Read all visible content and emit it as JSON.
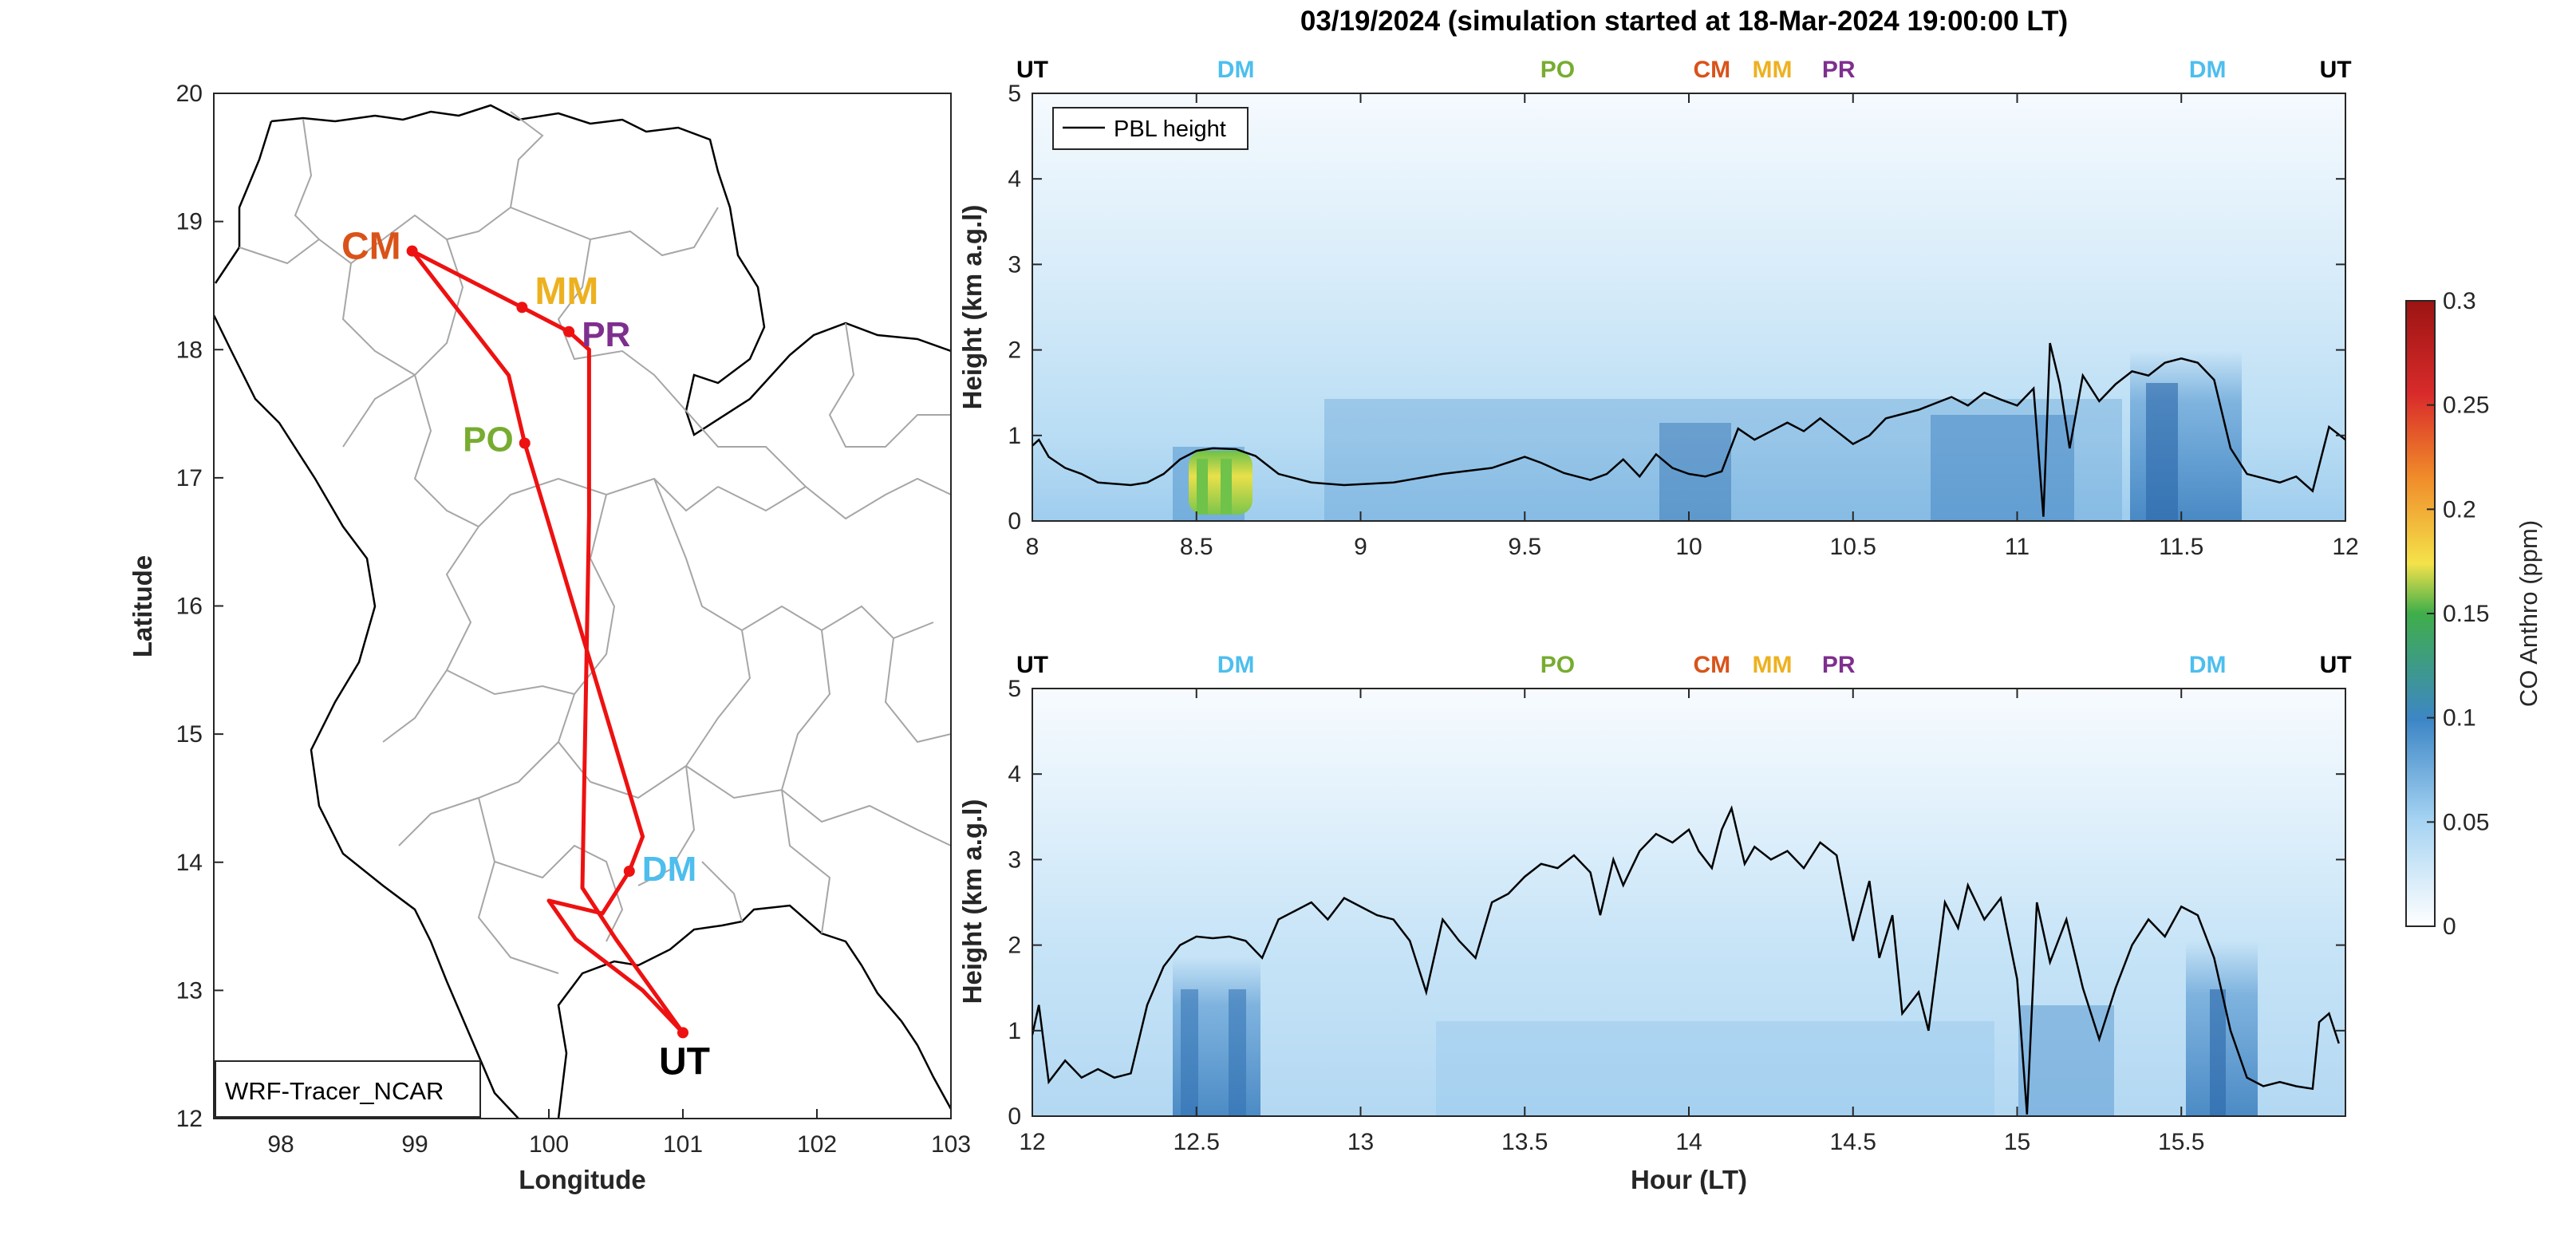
{
  "title": "03/19/2024 (simulation started at 18-Mar-2024 19:00:00 LT)",
  "colors": {
    "UT": "#000000",
    "DM": "#4dbeee",
    "PO": "#77ac30",
    "CM": "#d95319",
    "MM": "#edb120",
    "PR": "#7e2f8e",
    "track": "#ee1111",
    "pbl": "#000000"
  },
  "chart_data": [
    {
      "type": "map",
      "xlabel": "Longitude",
      "ylabel": "Latitude",
      "xlim": [
        97.5,
        103
      ],
      "ylim": [
        12,
        20
      ],
      "xticks": [
        98,
        99,
        100,
        101,
        102,
        103
      ],
      "yticks": [
        12,
        13,
        14,
        15,
        16,
        17,
        18,
        19,
        20
      ],
      "legend": "WRF-Tracer_NCAR",
      "sites": [
        {
          "name": "CM",
          "lon": 98.98,
          "lat": 18.77
        },
        {
          "name": "MM",
          "lon": 99.8,
          "lat": 18.33
        },
        {
          "name": "PR",
          "lon": 100.15,
          "lat": 18.14
        },
        {
          "name": "PO",
          "lon": 99.82,
          "lat": 17.27
        },
        {
          "name": "DM",
          "lon": 100.6,
          "lat": 13.93
        },
        {
          "name": "UT",
          "lon": 101.0,
          "lat": 12.67
        }
      ],
      "track": [
        [
          101.0,
          12.67
        ],
        [
          100.5,
          13.4
        ],
        [
          100.25,
          13.8
        ],
        [
          100.3,
          16.7
        ],
        [
          100.3,
          18.0
        ],
        [
          100.15,
          18.14
        ],
        [
          99.8,
          18.33
        ],
        [
          98.98,
          18.77
        ],
        [
          99.7,
          17.8
        ],
        [
          99.82,
          17.27
        ],
        [
          100.7,
          14.2
        ],
        [
          100.6,
          13.93
        ],
        [
          100.4,
          13.6
        ],
        [
          100.0,
          13.7
        ],
        [
          100.2,
          13.4
        ],
        [
          100.7,
          13.0
        ],
        [
          101.0,
          12.67
        ]
      ]
    },
    {
      "type": "heatmap",
      "xlabel": "",
      "ylabel": "Height (km a.g.l)",
      "xlim": [
        8,
        12
      ],
      "ylim": [
        0,
        5
      ],
      "xticks": [
        8,
        8.5,
        9,
        9.5,
        10,
        10.5,
        11,
        11.5,
        12
      ],
      "yticks": [
        0,
        1,
        2,
        3,
        4,
        5
      ],
      "legend": "PBL height",
      "site_markers": [
        {
          "name": "UT",
          "x": 8.0
        },
        {
          "name": "DM",
          "x": 8.62
        },
        {
          "name": "PO",
          "x": 9.6
        },
        {
          "name": "CM",
          "x": 10.07
        },
        {
          "name": "MM",
          "x": 10.3
        },
        {
          "name": "PR",
          "x": 10.42
        },
        {
          "name": "DM",
          "x": 11.58
        },
        {
          "name": "UT",
          "x": 11.97
        }
      ],
      "pbl_height": [
        [
          8.0,
          0.88
        ],
        [
          8.02,
          0.95
        ],
        [
          8.05,
          0.75
        ],
        [
          8.1,
          0.62
        ],
        [
          8.15,
          0.55
        ],
        [
          8.2,
          0.45
        ],
        [
          8.3,
          0.42
        ],
        [
          8.35,
          0.45
        ],
        [
          8.4,
          0.55
        ],
        [
          8.45,
          0.72
        ],
        [
          8.5,
          0.82
        ],
        [
          8.55,
          0.85
        ],
        [
          8.62,
          0.84
        ],
        [
          8.68,
          0.76
        ],
        [
          8.75,
          0.55
        ],
        [
          8.85,
          0.45
        ],
        [
          8.95,
          0.42
        ],
        [
          9.1,
          0.45
        ],
        [
          9.25,
          0.55
        ],
        [
          9.4,
          0.62
        ],
        [
          9.5,
          0.75
        ],
        [
          9.55,
          0.68
        ],
        [
          9.62,
          0.56
        ],
        [
          9.7,
          0.48
        ],
        [
          9.75,
          0.55
        ],
        [
          9.8,
          0.72
        ],
        [
          9.85,
          0.52
        ],
        [
          9.9,
          0.78
        ],
        [
          9.95,
          0.62
        ],
        [
          10.0,
          0.55
        ],
        [
          10.05,
          0.52
        ],
        [
          10.1,
          0.58
        ],
        [
          10.15,
          1.08
        ],
        [
          10.2,
          0.95
        ],
        [
          10.25,
          1.05
        ],
        [
          10.3,
          1.15
        ],
        [
          10.35,
          1.05
        ],
        [
          10.4,
          1.2
        ],
        [
          10.45,
          1.05
        ],
        [
          10.5,
          0.9
        ],
        [
          10.55,
          1.0
        ],
        [
          10.6,
          1.2
        ],
        [
          10.7,
          1.3
        ],
        [
          10.8,
          1.45
        ],
        [
          10.85,
          1.35
        ],
        [
          10.9,
          1.5
        ],
        [
          10.95,
          1.42
        ],
        [
          11.0,
          1.35
        ],
        [
          11.05,
          1.55
        ],
        [
          11.08,
          0.05
        ],
        [
          11.1,
          2.08
        ],
        [
          11.13,
          1.6
        ],
        [
          11.16,
          0.85
        ],
        [
          11.2,
          1.7
        ],
        [
          11.25,
          1.4
        ],
        [
          11.3,
          1.6
        ],
        [
          11.35,
          1.75
        ],
        [
          11.4,
          1.7
        ],
        [
          11.45,
          1.85
        ],
        [
          11.5,
          1.9
        ],
        [
          11.55,
          1.85
        ],
        [
          11.6,
          1.65
        ],
        [
          11.65,
          0.85
        ],
        [
          11.7,
          0.55
        ],
        [
          11.8,
          0.45
        ],
        [
          11.85,
          0.52
        ],
        [
          11.9,
          0.35
        ],
        [
          11.95,
          1.1
        ],
        [
          12.0,
          0.95
        ]
      ]
    },
    {
      "type": "heatmap",
      "xlabel": "Hour (LT)",
      "ylabel": "Height (km a.g.l)",
      "xlim": [
        12,
        16
      ],
      "ylim": [
        0,
        5
      ],
      "xticks": [
        12,
        12.5,
        13,
        13.5,
        14,
        14.5,
        15,
        15.5
      ],
      "yticks": [
        0,
        1,
        2,
        3,
        4,
        5
      ],
      "site_markers": [
        {
          "name": "UT",
          "x": 12.0
        },
        {
          "name": "DM",
          "x": 12.62
        },
        {
          "name": "PO",
          "x": 13.6
        },
        {
          "name": "CM",
          "x": 14.07
        },
        {
          "name": "MM",
          "x": 14.3
        },
        {
          "name": "PR",
          "x": 14.42
        },
        {
          "name": "DM",
          "x": 15.58
        },
        {
          "name": "UT",
          "x": 15.97
        }
      ],
      "pbl_height": [
        [
          12.0,
          0.95
        ],
        [
          12.02,
          1.3
        ],
        [
          12.05,
          0.4
        ],
        [
          12.1,
          0.65
        ],
        [
          12.15,
          0.45
        ],
        [
          12.2,
          0.55
        ],
        [
          12.25,
          0.45
        ],
        [
          12.3,
          0.5
        ],
        [
          12.35,
          1.3
        ],
        [
          12.4,
          1.75
        ],
        [
          12.45,
          2.0
        ],
        [
          12.5,
          2.1
        ],
        [
          12.55,
          2.08
        ],
        [
          12.6,
          2.1
        ],
        [
          12.65,
          2.05
        ],
        [
          12.7,
          1.85
        ],
        [
          12.75,
          2.3
        ],
        [
          12.8,
          2.4
        ],
        [
          12.85,
          2.5
        ],
        [
          12.9,
          2.3
        ],
        [
          12.95,
          2.55
        ],
        [
          13.0,
          2.45
        ],
        [
          13.05,
          2.35
        ],
        [
          13.1,
          2.3
        ],
        [
          13.15,
          2.05
        ],
        [
          13.2,
          1.45
        ],
        [
          13.25,
          2.3
        ],
        [
          13.3,
          2.05
        ],
        [
          13.35,
          1.85
        ],
        [
          13.4,
          2.5
        ],
        [
          13.45,
          2.6
        ],
        [
          13.5,
          2.8
        ],
        [
          13.55,
          2.95
        ],
        [
          13.6,
          2.9
        ],
        [
          13.65,
          3.05
        ],
        [
          13.7,
          2.85
        ],
        [
          13.73,
          2.35
        ],
        [
          13.77,
          3.0
        ],
        [
          13.8,
          2.7
        ],
        [
          13.85,
          3.1
        ],
        [
          13.9,
          3.3
        ],
        [
          13.95,
          3.2
        ],
        [
          14.0,
          3.35
        ],
        [
          14.03,
          3.1
        ],
        [
          14.07,
          2.9
        ],
        [
          14.1,
          3.35
        ],
        [
          14.13,
          3.6
        ],
        [
          14.17,
          2.95
        ],
        [
          14.2,
          3.15
        ],
        [
          14.25,
          3.0
        ],
        [
          14.3,
          3.1
        ],
        [
          14.35,
          2.9
        ],
        [
          14.4,
          3.2
        ],
        [
          14.45,
          3.05
        ],
        [
          14.5,
          2.05
        ],
        [
          14.55,
          2.75
        ],
        [
          14.58,
          1.85
        ],
        [
          14.62,
          2.35
        ],
        [
          14.65,
          1.2
        ],
        [
          14.7,
          1.45
        ],
        [
          14.73,
          1.0
        ],
        [
          14.78,
          2.5
        ],
        [
          14.82,
          2.2
        ],
        [
          14.85,
          2.7
        ],
        [
          14.9,
          2.3
        ],
        [
          14.95,
          2.55
        ],
        [
          15.0,
          1.6
        ],
        [
          15.03,
          0.02
        ],
        [
          15.06,
          2.5
        ],
        [
          15.1,
          1.8
        ],
        [
          15.15,
          2.3
        ],
        [
          15.2,
          1.5
        ],
        [
          15.25,
          0.9
        ],
        [
          15.3,
          1.5
        ],
        [
          15.35,
          2.0
        ],
        [
          15.4,
          2.3
        ],
        [
          15.45,
          2.1
        ],
        [
          15.5,
          2.45
        ],
        [
          15.55,
          2.35
        ],
        [
          15.6,
          1.85
        ],
        [
          15.65,
          1.0
        ],
        [
          15.7,
          0.45
        ],
        [
          15.75,
          0.35
        ],
        [
          15.8,
          0.4
        ],
        [
          15.85,
          0.35
        ],
        [
          15.9,
          0.32
        ],
        [
          15.92,
          1.1
        ],
        [
          15.95,
          1.2
        ],
        [
          15.98,
          0.85
        ]
      ]
    },
    {
      "type": "colorbar",
      "label": "CO Anthro (ppm)",
      "range": [
        0,
        0.3
      ],
      "ticks": [
        "0",
        "0.05",
        "0.1",
        "0.15",
        "0.2",
        "0.25",
        "0.3"
      ]
    }
  ]
}
